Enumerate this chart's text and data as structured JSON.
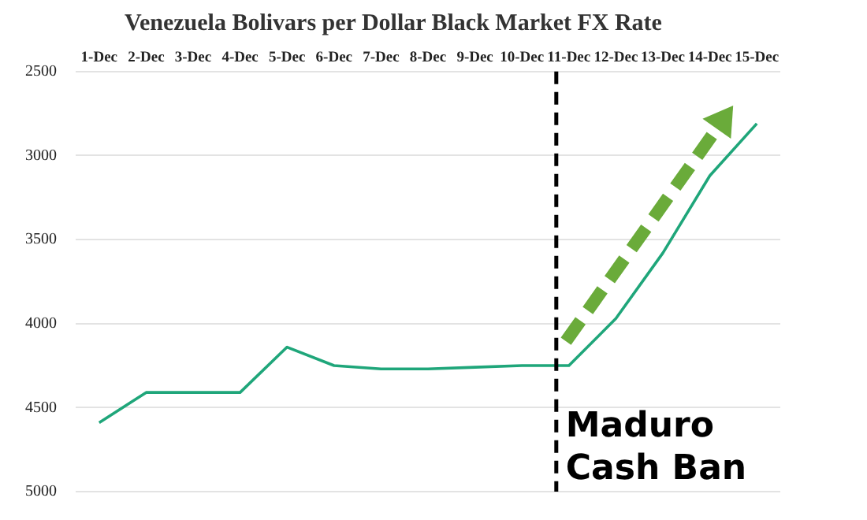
{
  "chart_data": {
    "type": "line",
    "title": "Venezuela Bolivars per Dollar Black Market FX Rate",
    "categories": [
      "1-Dec",
      "2-Dec",
      "3-Dec",
      "4-Dec",
      "5-Dec",
      "6-Dec",
      "7-Dec",
      "8-Dec",
      "9-Dec",
      "10-Dec",
      "11-Dec",
      "12-Dec",
      "13-Dec",
      "14-Dec",
      "15-Dec"
    ],
    "series": [
      {
        "color": "#1fa67a",
        "values": [
          4590,
          4410,
          4410,
          4410,
          4140,
          4250,
          4270,
          4270,
          4260,
          4250,
          4250,
          3970,
          3580,
          3120,
          2810
        ]
      }
    ],
    "ylim": [
      5000,
      2500
    ],
    "yticks": [
      2500,
      3000,
      3500,
      4000,
      4500,
      5000
    ],
    "grid": "y",
    "legend": false,
    "marker": "none",
    "line_style": "solid",
    "ref_lines": [
      {
        "axis": "x",
        "value": "11-Dec",
        "label": "Maduro Cash Ban",
        "color": "#000000",
        "line_style": "dashed"
      }
    ]
  }
}
